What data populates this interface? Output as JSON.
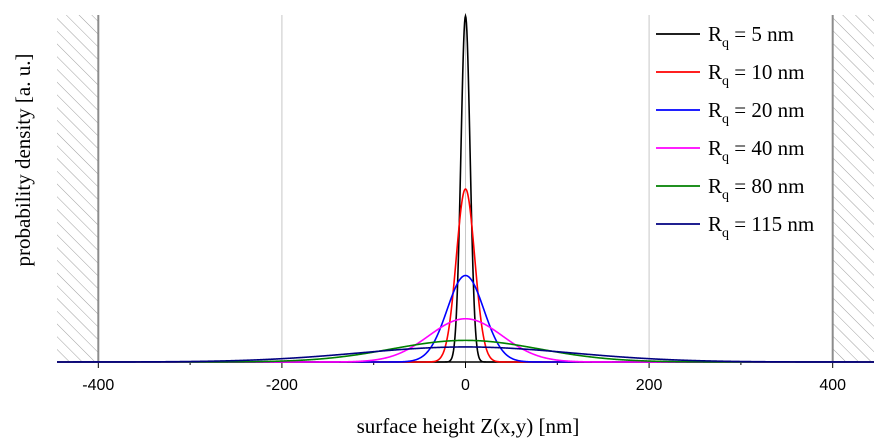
{
  "chart_data": {
    "type": "line",
    "title": "",
    "xlabel": "surface height Z(x,y) [nm]",
    "ylabel": "probability density [a. u.]",
    "xlim": [
      -445,
      445
    ],
    "xticks": [
      -400,
      -200,
      0,
      200,
      400
    ],
    "xtick_labels": [
      "-400",
      "-200",
      "0",
      "200",
      "400"
    ],
    "grid_x": true,
    "grid_x_lines": [
      -200,
      0,
      200
    ],
    "boundary_lines": [
      -400,
      400
    ],
    "hatched_regions": [
      [
        -445,
        -400
      ],
      [
        400,
        445
      ]
    ],
    "peak_center": 0,
    "y_axis_ticks_shown": false,
    "legend_position": "top-right",
    "series": [
      {
        "name": "R",
        "subscript": "q",
        "suffix": " = 5 nm",
        "rq": 5,
        "peak_height": 1.0,
        "color": "#000000"
      },
      {
        "name": "R",
        "subscript": "q",
        "suffix": " = 10 nm",
        "rq": 10,
        "peak_height": 0.5,
        "color": "#ff0000"
      },
      {
        "name": "R",
        "subscript": "q",
        "suffix": " = 20 nm",
        "rq": 20,
        "peak_height": 0.25,
        "color": "#0000ff"
      },
      {
        "name": "R",
        "subscript": "q",
        "suffix": " = 40 nm",
        "rq": 40,
        "peak_height": 0.125,
        "color": "#ff00ff"
      },
      {
        "name": "R",
        "subscript": "q",
        "suffix": " = 80 nm",
        "rq": 80,
        "peak_height": 0.0625,
        "color": "#008000"
      },
      {
        "name": "R",
        "subscript": "q",
        "suffix": " = 115 nm",
        "rq": 115,
        "peak_height": 0.0435,
        "color": "#000080"
      }
    ]
  }
}
